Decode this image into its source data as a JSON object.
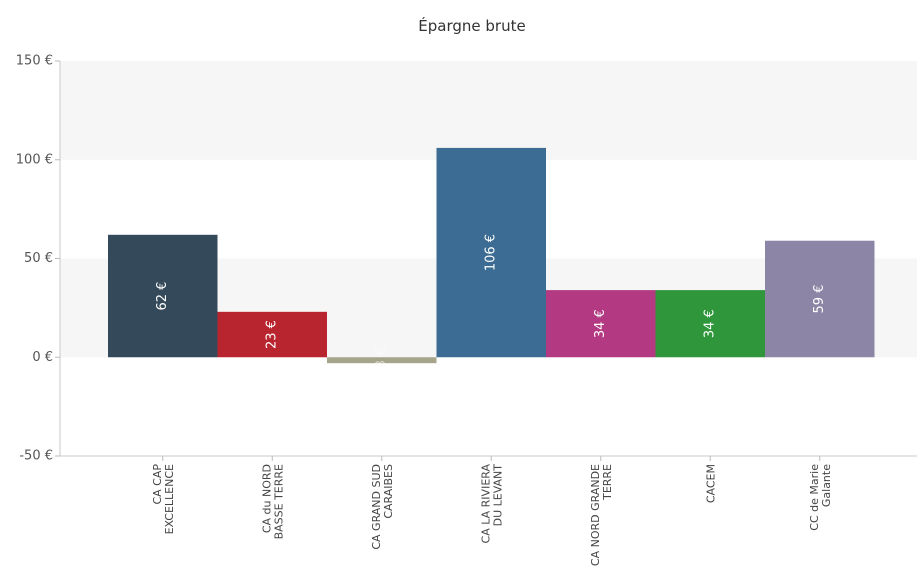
{
  "chart_data": {
    "type": "bar",
    "title": "Épargne brute",
    "categories": [
      [
        "CA CAP",
        "EXCELLENCE"
      ],
      [
        "CA du NORD",
        "BASSE TERRE"
      ],
      [
        "CA GRAND SUD",
        "CARAIBES"
      ],
      [
        "CA LA RIVIERA",
        "DU LEVANT"
      ],
      [
        "CA NORD GRANDE",
        "TERRE"
      ],
      [
        "CACEM"
      ],
      [
        "CC de Marie",
        "Galante"
      ]
    ],
    "values": [
      62,
      23,
      -3,
      106,
      34,
      34,
      59
    ],
    "data_labels": [
      "62 €",
      "23 €",
      "-3 €",
      "106 €",
      "34 €",
      "34 €",
      "59 €"
    ],
    "colors": [
      "#344a5a",
      "#b9252f",
      "#a6a58c",
      "#3c6c93",
      "#b33a82",
      "#2f963b",
      "#8d85a5"
    ],
    "ylim": [
      -50,
      150
    ],
    "yticks": [
      -50,
      0,
      50,
      100,
      150
    ],
    "ytick_labels": [
      "-50 €",
      "0 €",
      "50 €",
      "100 €",
      "150 €"
    ],
    "xlabel": "",
    "ylabel": "",
    "grid": "alternating bands",
    "legend": "none"
  }
}
